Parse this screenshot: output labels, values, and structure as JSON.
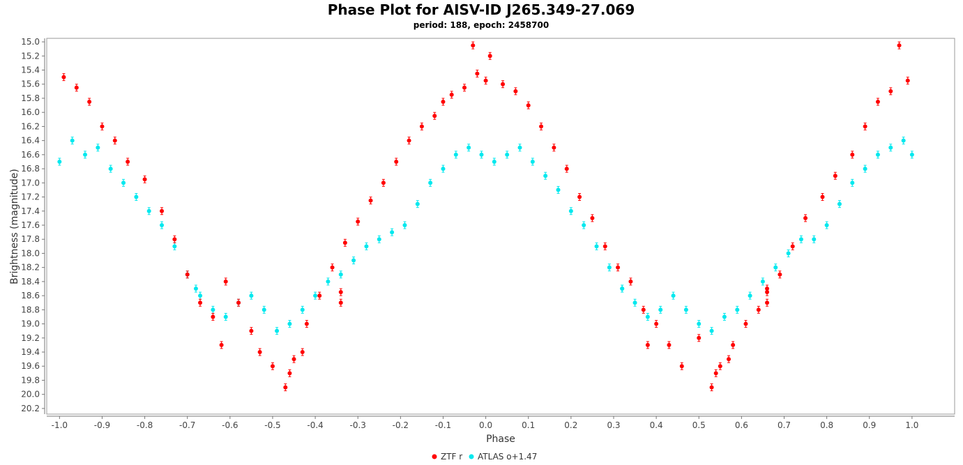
{
  "chart_data": {
    "type": "scatter",
    "title": "Phase Plot for AISV-ID J265.349-27.069",
    "subtitle": "period: 188, epoch: 2458700",
    "xlabel": "Phase",
    "ylabel": "Brightness (magnitude)",
    "xlim": [
      -1.03,
      1.1
    ],
    "ylim": [
      20.28,
      14.95
    ],
    "y_inverted": true,
    "x_ticks": [
      "-1.0",
      "-0.9",
      "-0.8",
      "-0.7",
      "-0.6",
      "-0.5",
      "-0.4",
      "-0.3",
      "-0.2",
      "-0.1",
      "0.0",
      "0.1",
      "0.2",
      "0.3",
      "0.4",
      "0.5",
      "0.6",
      "0.7",
      "0.8",
      "0.9",
      "1.0"
    ],
    "y_ticks": [
      "15.0",
      "15.2",
      "15.4",
      "15.6",
      "15.8",
      "16.0",
      "16.2",
      "16.4",
      "16.6",
      "16.8",
      "17.0",
      "17.2",
      "17.4",
      "17.6",
      "17.8",
      "18.0",
      "18.2",
      "18.4",
      "18.6",
      "18.8",
      "19.0",
      "19.2",
      "19.4",
      "19.6",
      "19.8",
      "20.0",
      "20.2"
    ],
    "grid": false,
    "legend_placement": "bottom-center",
    "series": [
      {
        "name": "ZTF r",
        "color": "#ff0000",
        "marker": "circle",
        "error_bars": true,
        "points": [
          [
            0.0,
            15.55
          ],
          [
            -0.03,
            15.05
          ],
          [
            -0.02,
            15.45
          ],
          [
            0.01,
            15.2
          ],
          [
            -0.05,
            15.65
          ],
          [
            -0.08,
            15.75
          ],
          [
            0.04,
            15.6
          ],
          [
            0.07,
            15.7
          ],
          [
            -0.1,
            15.85
          ],
          [
            0.1,
            15.9
          ],
          [
            -0.12,
            16.05
          ],
          [
            -0.15,
            16.2
          ],
          [
            -0.18,
            16.4
          ],
          [
            -0.21,
            16.7
          ],
          [
            -0.24,
            17.0
          ],
          [
            -0.27,
            17.25
          ],
          [
            -0.3,
            17.55
          ],
          [
            -0.33,
            17.85
          ],
          [
            -0.36,
            18.2
          ],
          [
            -0.39,
            18.6
          ],
          [
            -0.42,
            19.0
          ],
          [
            -0.45,
            19.5
          ],
          [
            -0.47,
            19.9
          ],
          [
            -0.5,
            19.6
          ],
          [
            -0.53,
            19.4
          ],
          [
            -0.55,
            19.1
          ],
          [
            -0.58,
            18.7
          ],
          [
            -0.61,
            18.4
          ],
          [
            -0.64,
            18.9
          ],
          [
            -0.67,
            18.7
          ],
          [
            -0.7,
            18.3
          ],
          [
            -0.73,
            17.8
          ],
          [
            -0.76,
            17.4
          ],
          [
            -0.8,
            16.95
          ],
          [
            -0.84,
            16.7
          ],
          [
            -0.87,
            16.4
          ],
          [
            -0.9,
            16.2
          ],
          [
            -0.93,
            15.85
          ],
          [
            -0.96,
            15.65
          ],
          [
            -0.99,
            15.5
          ],
          [
            0.13,
            16.2
          ],
          [
            0.16,
            16.5
          ],
          [
            0.19,
            16.8
          ],
          [
            0.22,
            17.2
          ],
          [
            0.25,
            17.5
          ],
          [
            0.28,
            17.9
          ],
          [
            0.31,
            18.2
          ],
          [
            0.34,
            18.4
          ],
          [
            0.37,
            18.8
          ],
          [
            0.4,
            19.0
          ],
          [
            0.43,
            19.3
          ],
          [
            0.46,
            19.6
          ],
          [
            0.5,
            19.2
          ],
          [
            0.53,
            19.9
          ],
          [
            0.55,
            19.6
          ],
          [
            0.58,
            19.3
          ],
          [
            0.61,
            19.0
          ],
          [
            0.64,
            18.8
          ],
          [
            0.66,
            18.5
          ],
          [
            0.69,
            18.3
          ],
          [
            0.72,
            17.9
          ],
          [
            0.75,
            17.5
          ],
          [
            0.79,
            17.2
          ],
          [
            0.82,
            16.9
          ],
          [
            0.86,
            16.6
          ],
          [
            0.89,
            16.2
          ],
          [
            0.92,
            15.85
          ],
          [
            0.95,
            15.7
          ],
          [
            0.97,
            15.05
          ],
          [
            0.99,
            15.55
          ],
          [
            -0.34,
            18.55
          ],
          [
            -0.34,
            18.7
          ],
          [
            0.66,
            18.55
          ],
          [
            0.66,
            18.7
          ],
          [
            -0.46,
            19.7
          ],
          [
            0.54,
            19.7
          ],
          [
            0.57,
            19.5
          ],
          [
            -0.43,
            19.4
          ],
          [
            -0.62,
            19.3
          ],
          [
            0.38,
            19.3
          ]
        ]
      },
      {
        "name": "ATLAS o+1.47",
        "color": "#00e8ee",
        "marker": "circle",
        "error_bars": true,
        "points": [
          [
            -1.0,
            16.7
          ],
          [
            -0.97,
            16.4
          ],
          [
            -0.94,
            16.6
          ],
          [
            -0.91,
            16.5
          ],
          [
            -0.88,
            16.8
          ],
          [
            -0.85,
            17.0
          ],
          [
            -0.82,
            17.2
          ],
          [
            -0.79,
            17.4
          ],
          [
            -0.76,
            17.6
          ],
          [
            -0.73,
            17.9
          ],
          [
            -0.7,
            18.3
          ],
          [
            -0.67,
            18.6
          ],
          [
            -0.64,
            18.8
          ],
          [
            -0.61,
            18.9
          ],
          [
            -0.58,
            18.7
          ],
          [
            -0.55,
            18.6
          ],
          [
            -0.52,
            18.8
          ],
          [
            -0.49,
            19.1
          ],
          [
            -0.46,
            19.0
          ],
          [
            -0.43,
            18.8
          ],
          [
            -0.4,
            18.6
          ],
          [
            -0.37,
            18.4
          ],
          [
            -0.34,
            18.3
          ],
          [
            -0.31,
            18.1
          ],
          [
            -0.28,
            17.9
          ],
          [
            -0.25,
            17.8
          ],
          [
            -0.22,
            17.7
          ],
          [
            -0.19,
            17.6
          ],
          [
            -0.16,
            17.3
          ],
          [
            -0.13,
            17.0
          ],
          [
            -0.1,
            16.8
          ],
          [
            -0.07,
            16.6
          ],
          [
            -0.04,
            16.5
          ],
          [
            -0.01,
            16.6
          ],
          [
            0.02,
            16.7
          ],
          [
            0.05,
            16.6
          ],
          [
            0.08,
            16.5
          ],
          [
            0.11,
            16.7
          ],
          [
            0.14,
            16.9
          ],
          [
            0.17,
            17.1
          ],
          [
            0.2,
            17.4
          ],
          [
            0.23,
            17.6
          ],
          [
            0.26,
            17.9
          ],
          [
            0.29,
            18.2
          ],
          [
            0.32,
            18.5
          ],
          [
            0.35,
            18.7
          ],
          [
            0.38,
            18.9
          ],
          [
            0.41,
            18.8
          ],
          [
            0.44,
            18.6
          ],
          [
            0.47,
            18.8
          ],
          [
            0.5,
            19.0
          ],
          [
            0.53,
            19.1
          ],
          [
            0.56,
            18.9
          ],
          [
            0.59,
            18.8
          ],
          [
            0.62,
            18.6
          ],
          [
            0.65,
            18.4
          ],
          [
            0.68,
            18.2
          ],
          [
            0.71,
            18.0
          ],
          [
            0.74,
            17.8
          ],
          [
            0.77,
            17.8
          ],
          [
            0.8,
            17.6
          ],
          [
            0.83,
            17.3
          ],
          [
            0.86,
            17.0
          ],
          [
            0.89,
            16.8
          ],
          [
            0.92,
            16.6
          ],
          [
            0.95,
            16.5
          ],
          [
            0.98,
            16.4
          ],
          [
            1.0,
            16.6
          ],
          [
            -0.68,
            18.5
          ],
          [
            0.32,
            18.5
          ]
        ]
      }
    ]
  },
  "legend": {
    "items": [
      {
        "label": "ZTF r",
        "color": "#ff0000"
      },
      {
        "label": "ATLAS o+1.47",
        "color": "#00e8ee"
      }
    ]
  }
}
